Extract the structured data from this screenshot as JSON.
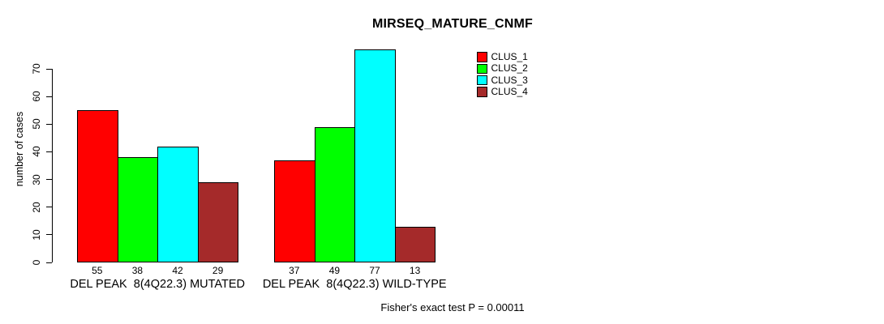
{
  "title": "MIRSEQ_MATURE_CNMF",
  "footer": "Fisher's exact test P = 0.00011",
  "chart_data": {
    "type": "bar",
    "title": "MIRSEQ_MATURE_CNMF",
    "xlabel": "",
    "ylabel": "number of cases",
    "ylim": [
      0,
      70
    ],
    "yticks": [
      0,
      10,
      20,
      30,
      40,
      50,
      60,
      70
    ],
    "grid": false,
    "legend_position": "top-right",
    "bar_value_labels": true,
    "categories": [
      "DEL PEAK  8(4Q22.3) MUTATED",
      "DEL PEAK  8(4Q22.3) WILD-TYPE"
    ],
    "series": [
      {
        "name": "CLUS_1",
        "color": "#FF0000",
        "values": [
          55,
          37
        ]
      },
      {
        "name": "CLUS_2",
        "color": "#00FF00",
        "values": [
          38,
          49
        ]
      },
      {
        "name": "CLUS_3",
        "color": "#00FFFF",
        "values": [
          42,
          77
        ]
      },
      {
        "name": "CLUS_4",
        "color": "#A52A2A",
        "values": [
          29,
          13
        ]
      }
    ],
    "annotation": "Fisher's exact test P = 0.00011"
  }
}
